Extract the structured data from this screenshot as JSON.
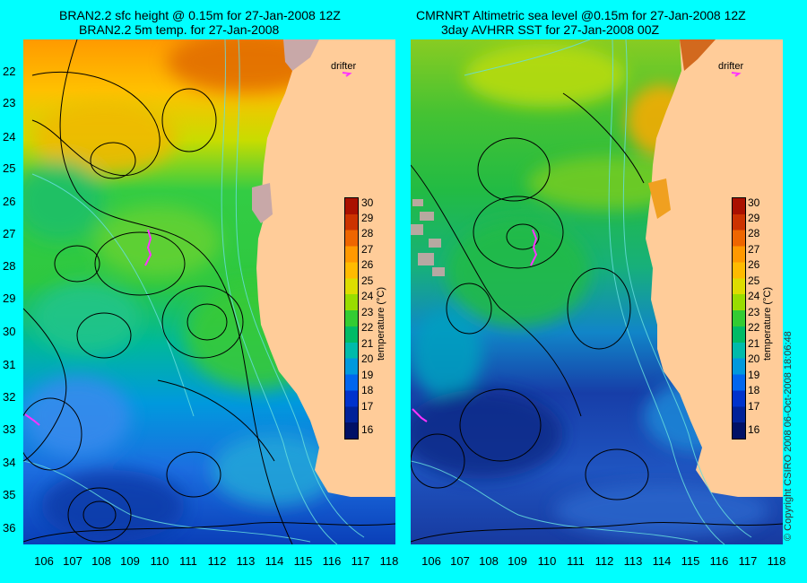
{
  "colors": {
    "background": "#00ffff",
    "land": "#ffcc99",
    "contour": "#000000",
    "bathymetry": "#66dddd",
    "drifter_track": "#ff33ff"
  },
  "left_panel": {
    "title_line1": "BRAN2.2 sfc height @ 0.15m for 27-Jan-2008 12Z",
    "title_line2": "BRAN2.2 5m temp. for 27-Jan-2008",
    "drifter_label": "drifter"
  },
  "right_panel": {
    "title_line1": "CMRNRT Altimetric sea level  @0.15m  for 27-Jan-2008 12Z",
    "title_line2": "3day AVHRR SST for 27-Jan-2008 00Z",
    "drifter_label": "drifter"
  },
  "latitude_ticks": [
    "22",
    "23",
    "24",
    "25",
    "26",
    "27",
    "28",
    "29",
    "30",
    "31",
    "32",
    "33",
    "34",
    "35",
    "36"
  ],
  "longitude_ticks": [
    "106",
    "107",
    "108",
    "109",
    "110",
    "111",
    "112",
    "113",
    "114",
    "115",
    "116",
    "117",
    "118"
  ],
  "colorbar": {
    "title": "temperature (°C)",
    "labels": [
      "30",
      "29",
      "28",
      "27",
      "26",
      "25",
      "24",
      "23",
      "22",
      "21",
      "20",
      "19",
      "18",
      "17",
      "16"
    ],
    "colors": [
      "#aa1100",
      "#cc3300",
      "#ee6600",
      "#ff9900",
      "#ffbb00",
      "#dddd00",
      "#99dd00",
      "#33cc33",
      "#00bb66",
      "#00bbaa",
      "#0099dd",
      "#0066ee",
      "#0033cc",
      "#002299",
      "#001166"
    ]
  },
  "copyright": "© Copyright CSIRO 2008    06-Oct-2008 18:06:48"
}
